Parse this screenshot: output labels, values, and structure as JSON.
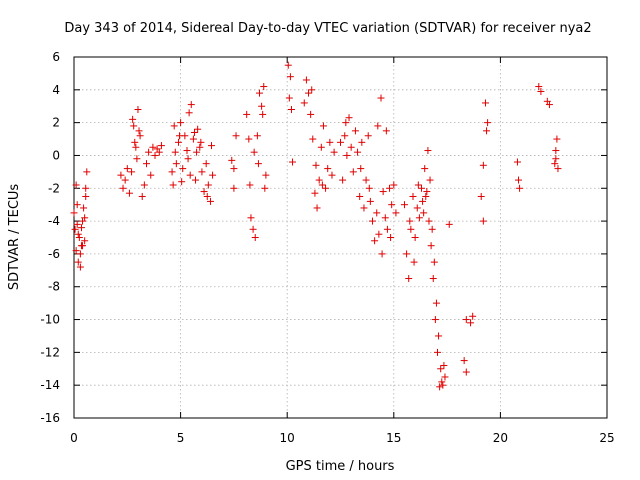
{
  "chart_data": {
    "type": "scatter",
    "title": "Day 343 of 2014, Sidereal Day-to-day VTEC variation (SDTVAR) for receiver nya2",
    "xlabel": "GPS time / hours",
    "ylabel": "SDTVAR / TECUs",
    "xlim": [
      0,
      25
    ],
    "ylim": [
      -16,
      6
    ],
    "xticks": [
      0,
      5,
      10,
      15,
      20,
      25
    ],
    "yticks": [
      -16,
      -14,
      -12,
      -10,
      -8,
      -6,
      -4,
      -2,
      0,
      2,
      4,
      6
    ],
    "grid": true,
    "marker": "+",
    "color": "#e00000",
    "series": [
      {
        "name": "SDTVAR",
        "x": [
          0.0,
          0.05,
          0.1,
          0.15,
          0.2,
          0.25,
          0.3,
          0.35,
          0.4,
          0.45,
          0.5,
          0.55,
          0.6,
          0.1,
          0.2,
          0.3,
          0.4,
          0.5,
          0.15,
          0.35,
          0.55,
          2.2,
          2.3,
          2.4,
          2.5,
          2.6,
          2.7,
          2.8,
          2.9,
          3.0,
          3.1,
          3.2,
          3.3,
          3.4,
          3.5,
          3.6,
          3.7,
          3.8,
          3.9,
          4.0,
          4.1,
          2.75,
          2.85,
          2.95,
          3.05,
          4.6,
          4.7,
          4.8,
          4.9,
          5.0,
          5.1,
          5.2,
          5.3,
          5.4,
          5.5,
          5.6,
          5.7,
          5.8,
          5.9,
          6.0,
          6.1,
          6.2,
          6.3,
          6.4,
          6.5,
          4.75,
          5.05,
          5.35,
          5.65,
          5.95,
          6.25,
          6.45,
          4.65,
          4.95,
          5.45,
          5.75,
          7.4,
          7.5,
          7.6,
          7.5,
          8.1,
          8.2,
          8.3,
          8.4,
          8.5,
          8.6,
          8.7,
          8.8,
          8.9,
          9.0,
          8.25,
          8.45,
          8.65,
          8.85,
          8.95,
          10.05,
          10.1,
          10.15,
          10.2,
          10.25,
          10.8,
          10.9,
          11.0,
          11.1,
          11.2,
          11.3,
          11.4,
          11.5,
          11.6,
          11.7,
          11.8,
          11.9,
          12.0,
          12.1,
          12.2,
          11.15,
          11.35,
          11.65,
          12.5,
          12.6,
          12.7,
          12.8,
          12.9,
          13.0,
          13.1,
          13.2,
          13.3,
          13.4,
          13.5,
          13.6,
          13.7,
          13.8,
          13.9,
          14.0,
          14.1,
          14.2,
          14.3,
          14.4,
          14.5,
          14.6,
          14.7,
          14.8,
          14.9,
          15.0,
          15.1,
          12.75,
          13.45,
          13.85,
          14.25,
          14.45,
          14.65,
          14.85,
          15.5,
          15.6,
          15.7,
          15.8,
          15.9,
          16.0,
          16.1,
          16.2,
          16.3,
          16.4,
          16.5,
          16.6,
          16.7,
          16.8,
          16.9,
          17.0,
          17.1,
          17.2,
          17.3,
          17.4,
          16.45,
          16.55,
          16.65,
          16.75,
          16.85,
          16.95,
          17.05,
          17.15,
          17.25,
          17.35,
          15.75,
          15.95,
          16.15,
          16.35,
          17.6,
          18.3,
          18.4,
          18.4,
          18.6,
          18.7,
          19.1,
          19.2,
          19.3,
          19.4,
          19.2,
          19.35,
          20.8,
          20.85,
          20.9,
          21.8,
          21.9,
          22.2,
          22.3,
          22.55,
          22.6,
          22.65,
          22.7,
          22.6
        ],
        "y": [
          -3.5,
          -4.5,
          -5.8,
          -4.2,
          -6.5,
          -5.0,
          -6.8,
          -5.5,
          -4.0,
          -3.2,
          -5.2,
          -2.0,
          -1.0,
          -1.8,
          -4.8,
          -6.0,
          -5.5,
          -3.8,
          -3.0,
          -4.4,
          -2.5,
          -1.2,
          -2.0,
          -1.5,
          -0.8,
          -2.3,
          -1.0,
          1.8,
          0.5,
          2.8,
          1.2,
          -2.5,
          -1.8,
          -0.5,
          0.2,
          -1.2,
          0.5,
          0.0,
          0.4,
          0.2,
          0.6,
          2.2,
          0.8,
          -0.2,
          1.5,
          -1.0,
          1.8,
          -0.5,
          0.8,
          2.0,
          -0.8,
          1.2,
          0.3,
          2.6,
          3.1,
          1.0,
          -1.5,
          1.6,
          0.5,
          -1.0,
          -2.2,
          -0.5,
          -1.8,
          -2.8,
          -1.2,
          0.2,
          -1.6,
          -0.2,
          1.4,
          0.8,
          -2.5,
          0.6,
          -1.8,
          1.2,
          -1.2,
          0.2,
          -0.3,
          -0.8,
          1.2,
          -2.0,
          2.5,
          1.0,
          -3.8,
          -4.5,
          -5.0,
          1.2,
          3.8,
          3.0,
          4.2,
          -1.2,
          -1.8,
          0.2,
          -0.5,
          2.5,
          -2.0,
          5.5,
          3.5,
          4.8,
          2.8,
          -0.4,
          3.2,
          4.6,
          3.8,
          2.5,
          1.0,
          -2.3,
          -3.2,
          -1.5,
          0.5,
          1.8,
          -2.0,
          -0.8,
          0.8,
          -1.2,
          0.2,
          4.0,
          -0.6,
          -1.8,
          0.8,
          -1.5,
          1.2,
          0.0,
          2.3,
          0.5,
          -1.0,
          1.5,
          0.2,
          -2.5,
          0.8,
          -3.2,
          -1.5,
          1.2,
          -2.8,
          -4.0,
          -5.2,
          -3.5,
          -4.8,
          3.5,
          -2.2,
          -3.8,
          -4.5,
          -2.0,
          -3.0,
          -1.8,
          -3.5,
          2.0,
          -0.8,
          -2.0,
          1.8,
          -6.0,
          1.5,
          -5.0,
          -3.0,
          -6.0,
          -7.5,
          -4.5,
          -2.5,
          -5.0,
          -3.2,
          -3.8,
          -2.0,
          -3.5,
          -2.5,
          0.3,
          -1.5,
          -4.5,
          -6.5,
          -9.0,
          -11.0,
          -13.0,
          -14.0,
          -13.5,
          -0.8,
          -2.2,
          -4.0,
          -5.5,
          -7.5,
          -10.0,
          -12.0,
          -14.1,
          -13.8,
          -12.8,
          -4.0,
          -6.5,
          -1.8,
          -2.8,
          -4.2,
          -12.5,
          -13.2,
          -10.0,
          -10.2,
          -9.8,
          -2.5,
          -4.0,
          3.2,
          2.0,
          -0.6,
          1.5,
          -0.4,
          -1.5,
          -2.0,
          4.2,
          3.9,
          3.3,
          3.1,
          -0.5,
          0.3,
          1.0,
          -0.8,
          -0.2
        ]
      }
    ]
  }
}
